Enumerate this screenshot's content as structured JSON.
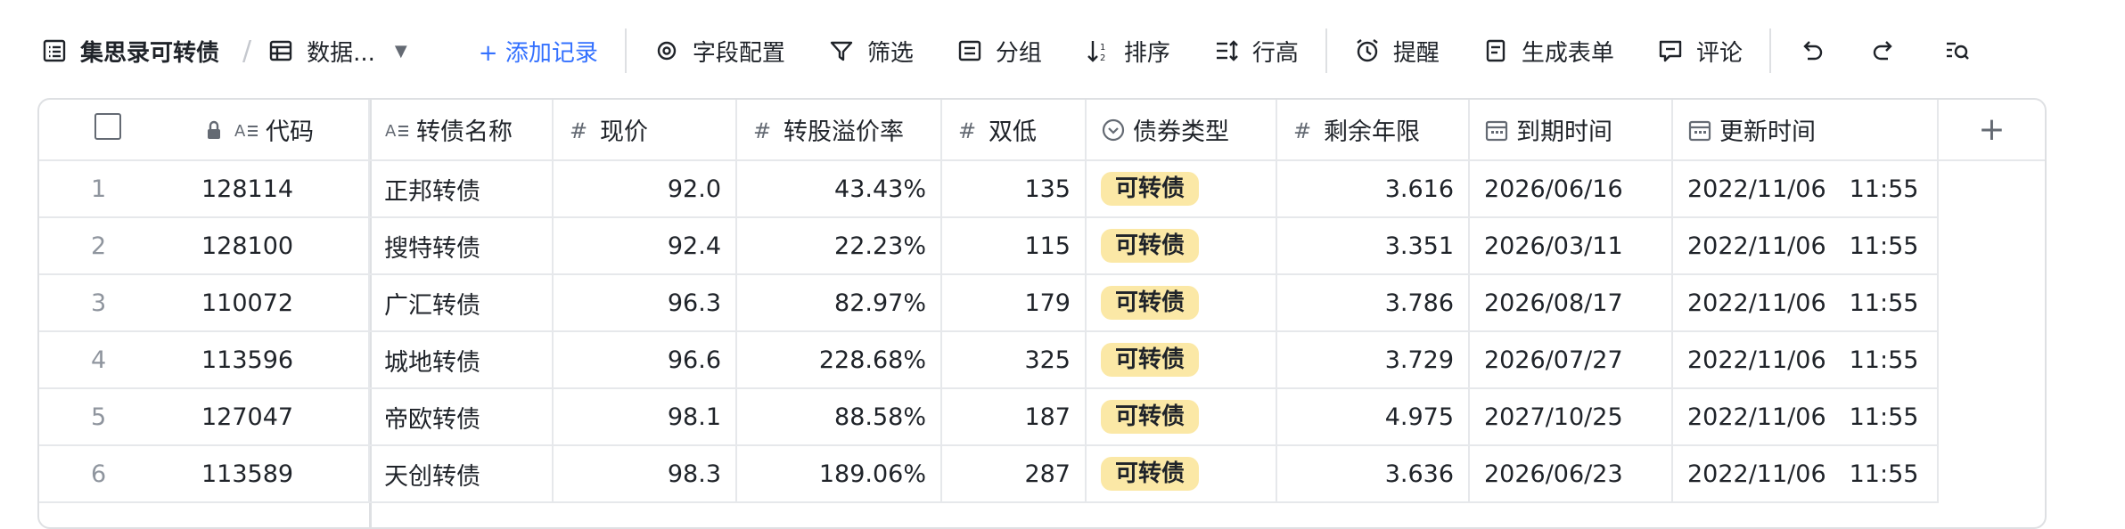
{
  "toolbar": {
    "title": "集思录可转债",
    "view_name": "数据...",
    "add_record": "+ 添加记录",
    "field_config": "字段配置",
    "filter": "筛选",
    "group": "分组",
    "sort": "排序",
    "row_height": "行高",
    "reminder": "提醒",
    "generate_form": "生成表单",
    "comment": "评论"
  },
  "table": {
    "columns": {
      "code": "代码",
      "name": "转债名称",
      "price": "现价",
      "premium": "转股溢价率",
      "double_low": "双低",
      "bond_type": "债券类型",
      "remaining": "剩余年限",
      "maturity": "到期时间",
      "updated": "更新时间"
    },
    "rows": [
      {
        "idx": "1",
        "code": "128114",
        "name": "正邦转债",
        "price": "92.0",
        "premium": "43.43%",
        "double_low": "135",
        "bond_type": "可转债",
        "remaining": "3.616",
        "maturity": "2026/06/16",
        "updated_date": "2022/11/06",
        "updated_time": "11:55"
      },
      {
        "idx": "2",
        "code": "128100",
        "name": "搜特转债",
        "price": "92.4",
        "premium": "22.23%",
        "double_low": "115",
        "bond_type": "可转债",
        "remaining": "3.351",
        "maturity": "2026/03/11",
        "updated_date": "2022/11/06",
        "updated_time": "11:55"
      },
      {
        "idx": "3",
        "code": "110072",
        "name": "广汇转债",
        "price": "96.3",
        "premium": "82.97%",
        "double_low": "179",
        "bond_type": "可转债",
        "remaining": "3.786",
        "maturity": "2026/08/17",
        "updated_date": "2022/11/06",
        "updated_time": "11:55"
      },
      {
        "idx": "4",
        "code": "113596",
        "name": "城地转债",
        "price": "96.6",
        "premium": "228.68%",
        "double_low": "325",
        "bond_type": "可转债",
        "remaining": "3.729",
        "maturity": "2026/07/27",
        "updated_date": "2022/11/06",
        "updated_time": "11:55"
      },
      {
        "idx": "5",
        "code": "127047",
        "name": "帝欧转债",
        "price": "98.1",
        "premium": "88.58%",
        "double_low": "187",
        "bond_type": "可转债",
        "remaining": "4.975",
        "maturity": "2027/10/25",
        "updated_date": "2022/11/06",
        "updated_time": "11:55"
      },
      {
        "idx": "6",
        "code": "113589",
        "name": "天创转债",
        "price": "98.3",
        "premium": "189.06%",
        "double_low": "287",
        "bond_type": "可转债",
        "remaining": "3.636",
        "maturity": "2026/06/23",
        "updated_date": "2022/11/06",
        "updated_time": "11:55"
      }
    ]
  },
  "colors": {
    "accent": "#3370ff",
    "tag_bg": "#fbe8a6",
    "border": "#dee0e3"
  }
}
